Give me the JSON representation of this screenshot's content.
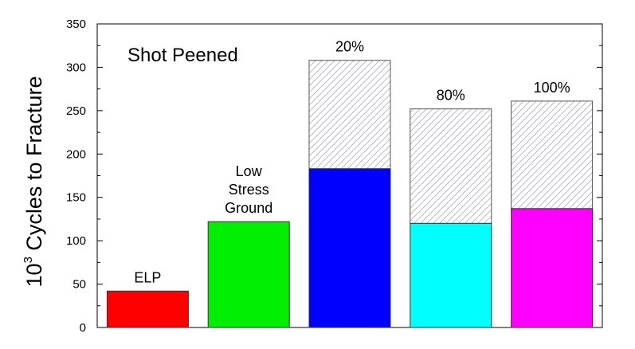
{
  "chart_data": {
    "type": "bar",
    "title": "Shot Peened",
    "ylabel": {
      "base": "10",
      "sup": "3",
      "text": " Cycles to Fracture"
    },
    "xlabel": "",
    "ylim": [
      0,
      350
    ],
    "yticks": [
      0,
      50,
      100,
      150,
      200,
      250,
      300,
      350
    ],
    "grid": false,
    "bars": [
      {
        "label": [
          "ELP"
        ],
        "value": 42,
        "total": 42,
        "color": "#ff0000"
      },
      {
        "label": [
          "Low",
          "Stress",
          "Ground"
        ],
        "value": 122,
        "total": 122,
        "color": "#00ee00"
      },
      {
        "label": [
          "20%"
        ],
        "value": 183,
        "total": 308,
        "color": "#0000ff"
      },
      {
        "label": [
          "80%"
        ],
        "value": 120,
        "total": 252,
        "color": "#00ffff"
      },
      {
        "label": [
          "100%"
        ],
        "value": 137,
        "total": 261,
        "color": "#ff00ff"
      }
    ],
    "hatch_color": "#b0b0c8"
  }
}
